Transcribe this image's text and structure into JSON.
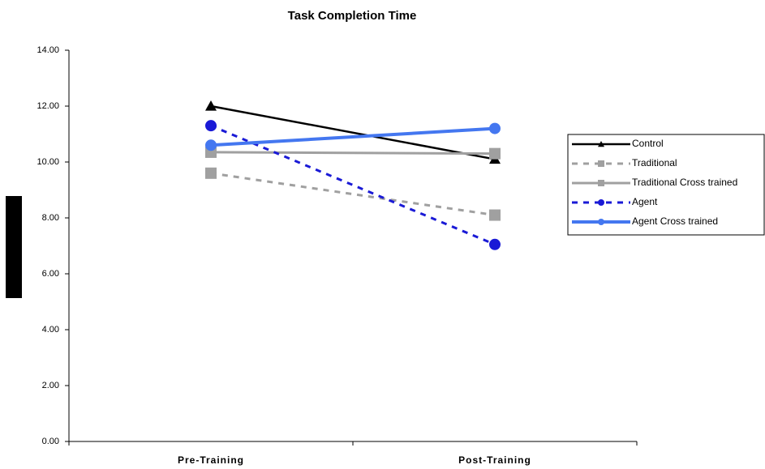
{
  "chart_data": {
    "type": "line",
    "title": "Task Completion Time",
    "categories": [
      "Pre-Training",
      "Post-Training"
    ],
    "series": [
      {
        "name": "Control",
        "color": "#000000",
        "dash": false,
        "marker": "triangle",
        "width": 2.5,
        "values": [
          12.0,
          10.1
        ]
      },
      {
        "name": "Traditional",
        "color": "#a0a0a0",
        "dash": true,
        "marker": "square",
        "width": 3,
        "values": [
          9.6,
          8.1
        ]
      },
      {
        "name": "Traditional Cross trained",
        "color": "#a0a0a0",
        "dash": false,
        "marker": "square",
        "width": 3,
        "values": [
          10.35,
          10.3
        ]
      },
      {
        "name": "Agent",
        "color": "#1a1ad6",
        "dash": true,
        "marker": "circle",
        "width": 3,
        "values": [
          11.3,
          7.05
        ]
      },
      {
        "name": "Agent Cross trained",
        "color": "#4477f0",
        "dash": false,
        "marker": "circle",
        "width": 4,
        "values": [
          10.6,
          11.2
        ]
      }
    ],
    "ylim": [
      0,
      14
    ],
    "yticks": [
      {
        "value": 0,
        "label": "0.00"
      },
      {
        "value": 2,
        "label": "2.00"
      },
      {
        "value": 4,
        "label": "4.00"
      },
      {
        "value": 6,
        "label": "6.00"
      },
      {
        "value": 8,
        "label": "8.00"
      },
      {
        "value": 10,
        "label": "10.00"
      },
      {
        "value": 12,
        "label": "12.00"
      },
      {
        "value": 14,
        "label": "14.00"
      }
    ],
    "grid": false,
    "legend": "right"
  }
}
